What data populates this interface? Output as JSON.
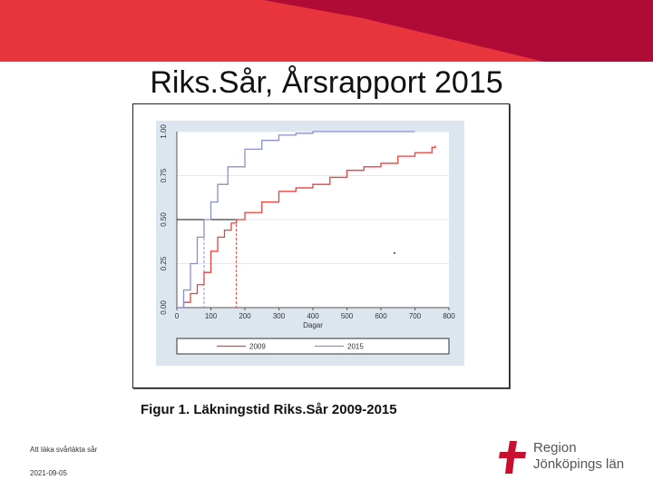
{
  "slide": {
    "title": "Riks.Sår, Årsrapport 2015",
    "caption": "Figur 1. Läkningstid Riks.Sår  2009-2015",
    "footer_left": "Att läka svårläkta sår",
    "footer_date": "2021-09-05",
    "logo_line1": "Region",
    "logo_line2": "Jönköpings län"
  },
  "colors": {
    "banner_red": "#e8343b",
    "banner_dark": "#b00a36",
    "plot_bg": "#dce6ee",
    "series_2009": "#e8423c",
    "series_2015": "#8a8fd0"
  },
  "chart_data": {
    "type": "line",
    "xlabel": "Dagar",
    "ylabel": "",
    "xlim": [
      0,
      800
    ],
    "ylim": [
      0,
      1
    ],
    "x_ticks": [
      0,
      100,
      200,
      300,
      400,
      500,
      600,
      700,
      800
    ],
    "y_ticks": [
      "0.00",
      "0.25",
      "0.50",
      "0.75",
      "1.00"
    ],
    "grid": true,
    "legend_position": "bottom",
    "series": [
      {
        "name": "2009",
        "color": "#e8423c",
        "x": [
          0,
          20,
          40,
          60,
          80,
          100,
          120,
          140,
          160,
          175,
          200,
          250,
          300,
          350,
          400,
          450,
          500,
          550,
          600,
          650,
          700,
          750,
          760
        ],
        "y": [
          0.0,
          0.03,
          0.08,
          0.13,
          0.2,
          0.32,
          0.4,
          0.44,
          0.48,
          0.5,
          0.54,
          0.6,
          0.66,
          0.68,
          0.7,
          0.74,
          0.78,
          0.8,
          0.82,
          0.86,
          0.88,
          0.91,
          0.92
        ]
      },
      {
        "name": "2015",
        "color": "#8a8fd0",
        "x": [
          0,
          20,
          40,
          60,
          80,
          100,
          120,
          150,
          200,
          250,
          300,
          350,
          400,
          500,
          600,
          700
        ],
        "y": [
          0.0,
          0.1,
          0.25,
          0.4,
          0.5,
          0.6,
          0.7,
          0.8,
          0.9,
          0.95,
          0.98,
          0.99,
          1.0,
          1.0,
          1.0,
          1.0
        ]
      }
    ],
    "median_line": {
      "y": 0.5,
      "x_2015": 80,
      "x_2009": 175
    }
  }
}
